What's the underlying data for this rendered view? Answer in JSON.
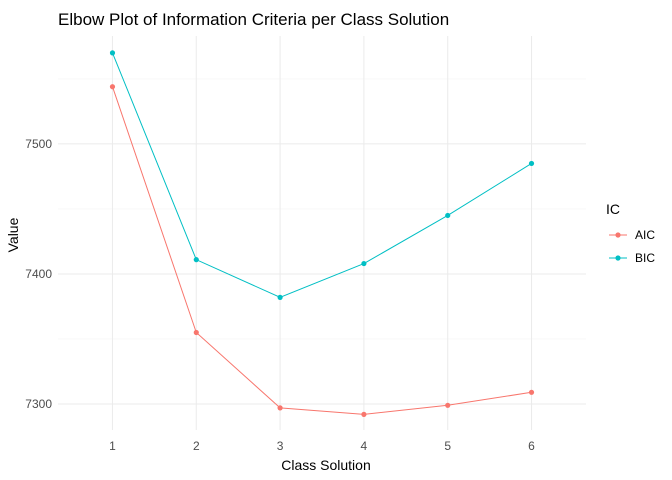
{
  "chart_data": {
    "type": "line",
    "title": "Elbow Plot of Information Criteria per Class Solution",
    "xlabel": "Class Solution",
    "ylabel": "Value",
    "x": [
      1,
      2,
      3,
      4,
      5,
      6
    ],
    "x_tick_labels": [
      "1",
      "2",
      "3",
      "4",
      "5",
      "6"
    ],
    "highlight_tick": "1",
    "highlight_tick_color": "#8b1a1a",
    "y_ticks": [
      7300,
      7400,
      7500
    ],
    "y_tick_labels": [
      "7300",
      "7400",
      "7500"
    ],
    "xlim": [
      0.35,
      6.65
    ],
    "ylim": [
      7280,
      7583
    ],
    "grid": true,
    "legend": {
      "title": "IC",
      "placement": "right"
    },
    "series": [
      {
        "name": "AIC",
        "color": "#f8766d",
        "values": [
          7544,
          7355,
          7297,
          7292,
          7299,
          7309
        ]
      },
      {
        "name": "BIC",
        "color": "#00bfc4",
        "values": [
          7570,
          7411,
          7382,
          7408,
          7445,
          7485
        ]
      }
    ]
  }
}
